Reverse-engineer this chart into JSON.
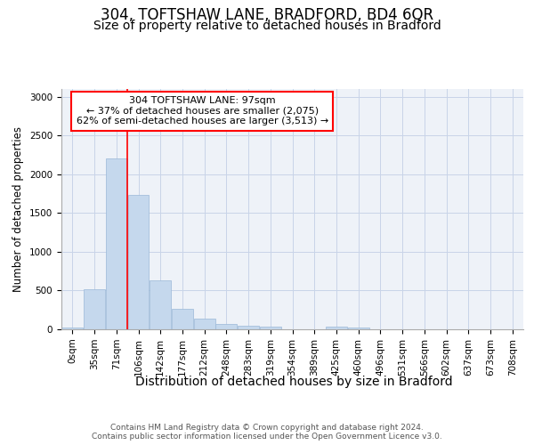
{
  "title1": "304, TOFTSHAW LANE, BRADFORD, BD4 6QR",
  "title2": "Size of property relative to detached houses in Bradford",
  "xlabel": "Distribution of detached houses by size in Bradford",
  "ylabel": "Number of detached properties",
  "categories": [
    "0sqm",
    "35sqm",
    "71sqm",
    "106sqm",
    "142sqm",
    "177sqm",
    "212sqm",
    "248sqm",
    "283sqm",
    "319sqm",
    "354sqm",
    "389sqm",
    "425sqm",
    "460sqm",
    "496sqm",
    "531sqm",
    "566sqm",
    "602sqm",
    "637sqm",
    "673sqm",
    "708sqm"
  ],
  "values": [
    20,
    520,
    2200,
    1730,
    630,
    260,
    140,
    70,
    50,
    30,
    5,
    5,
    30,
    20,
    5,
    0,
    0,
    0,
    0,
    0,
    0
  ],
  "bar_color": "#c5d8ed",
  "bar_edge_color": "#9ab8d8",
  "grid_color": "#c8d4e8",
  "background_color": "#eef2f8",
  "red_line_index": 3,
  "annotation_line1": "304 TOFTSHAW LANE: 97sqm",
  "annotation_line2": "← 37% of detached houses are smaller (2,075)",
  "annotation_line3": "62% of semi-detached houses are larger (3,513) →",
  "ylim": [
    0,
    3100
  ],
  "yticks": [
    0,
    500,
    1000,
    1500,
    2000,
    2500,
    3000
  ],
  "footer": "Contains HM Land Registry data © Crown copyright and database right 2024.\nContains public sector information licensed under the Open Government Licence v3.0.",
  "title1_fontsize": 12,
  "title2_fontsize": 10,
  "xlabel_fontsize": 10,
  "ylabel_fontsize": 8.5,
  "tick_fontsize": 7.5,
  "annotation_fontsize": 8,
  "footer_fontsize": 6.5
}
